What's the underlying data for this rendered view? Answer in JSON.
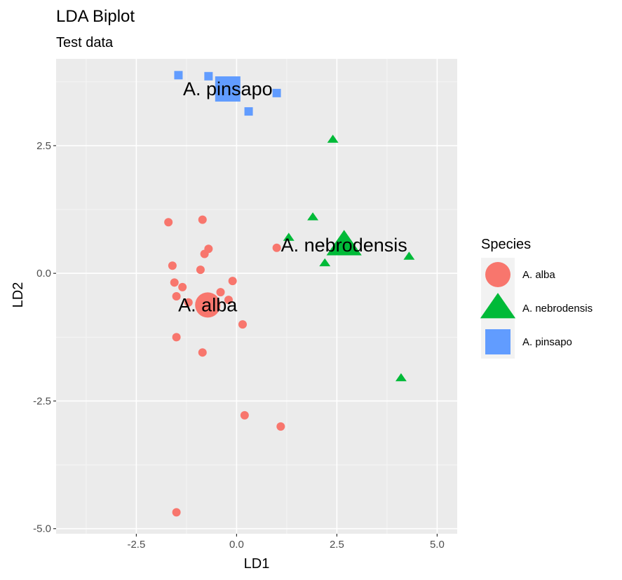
{
  "chart_data": {
    "type": "scatter",
    "title": "LDA Biplot",
    "subtitle": "Test data",
    "xlabel": "LD1",
    "ylabel": "LD2",
    "xlim": [
      -4.5,
      5.5
    ],
    "ylim": [
      -5.1,
      4.2
    ],
    "x_ticks": [
      -2.5,
      0.0,
      2.5,
      5.0
    ],
    "x_tick_labels": [
      "-2.5",
      "0.0",
      "2.5",
      "5.0"
    ],
    "y_ticks": [
      -5.0,
      -2.5,
      0.0,
      2.5
    ],
    "y_tick_labels": [
      "-5.0",
      "-2.5",
      "0.0",
      "2.5"
    ],
    "grid": true,
    "legend": {
      "title": "Species",
      "position": "right",
      "entries": [
        {
          "label": "A. alba",
          "shape": "circle",
          "color": "#F8766D"
        },
        {
          "label": "A. nebrodensis",
          "shape": "triangle",
          "color": "#00BA38"
        },
        {
          "label": "A. pinsapo",
          "shape": "square",
          "color": "#619CFF"
        }
      ]
    },
    "series": [
      {
        "name": "A. alba",
        "shape": "circle",
        "color": "#F8766D",
        "points": [
          {
            "x": -1.7,
            "y": 1.0
          },
          {
            "x": -0.85,
            "y": 1.05
          },
          {
            "x": -0.7,
            "y": 0.48
          },
          {
            "x": -0.8,
            "y": 0.38
          },
          {
            "x": 1.0,
            "y": 0.5
          },
          {
            "x": -1.6,
            "y": 0.15
          },
          {
            "x": -0.9,
            "y": 0.07
          },
          {
            "x": -1.55,
            "y": -0.18
          },
          {
            "x": -1.35,
            "y": -0.27
          },
          {
            "x": -0.1,
            "y": -0.15
          },
          {
            "x": -0.4,
            "y": -0.37
          },
          {
            "x": -1.5,
            "y": -0.45
          },
          {
            "x": -1.2,
            "y": -0.57
          },
          {
            "x": -0.2,
            "y": -0.52
          },
          {
            "x": 0.15,
            "y": -1.0
          },
          {
            "x": -1.5,
            "y": -1.25
          },
          {
            "x": -0.85,
            "y": -1.55
          },
          {
            "x": 0.2,
            "y": -2.78
          },
          {
            "x": 1.1,
            "y": -3.0
          },
          {
            "x": -1.5,
            "y": -4.68
          }
        ],
        "centroid": {
          "x": -0.72,
          "y": -0.62,
          "label": "A. alba"
        }
      },
      {
        "name": "A. nebrodensis",
        "shape": "triangle",
        "color": "#00BA38",
        "points": [
          {
            "x": 2.4,
            "y": 2.62
          },
          {
            "x": 1.9,
            "y": 1.1
          },
          {
            "x": 1.3,
            "y": 0.7
          },
          {
            "x": 2.2,
            "y": 0.2
          },
          {
            "x": 4.3,
            "y": 0.33
          },
          {
            "x": 4.1,
            "y": -2.05
          }
        ],
        "centroid": {
          "x": 2.68,
          "y": 0.55,
          "label": "A. nebrodensis"
        }
      },
      {
        "name": "A. pinsapo",
        "shape": "square",
        "color": "#619CFF",
        "points": [
          {
            "x": -1.45,
            "y": 3.88
          },
          {
            "x": -0.7,
            "y": 3.86
          },
          {
            "x": 1.0,
            "y": 3.53
          },
          {
            "x": 0.3,
            "y": 3.17
          }
        ],
        "centroid": {
          "x": -0.22,
          "y": 3.61,
          "label": "A. pinsapo"
        }
      }
    ]
  }
}
